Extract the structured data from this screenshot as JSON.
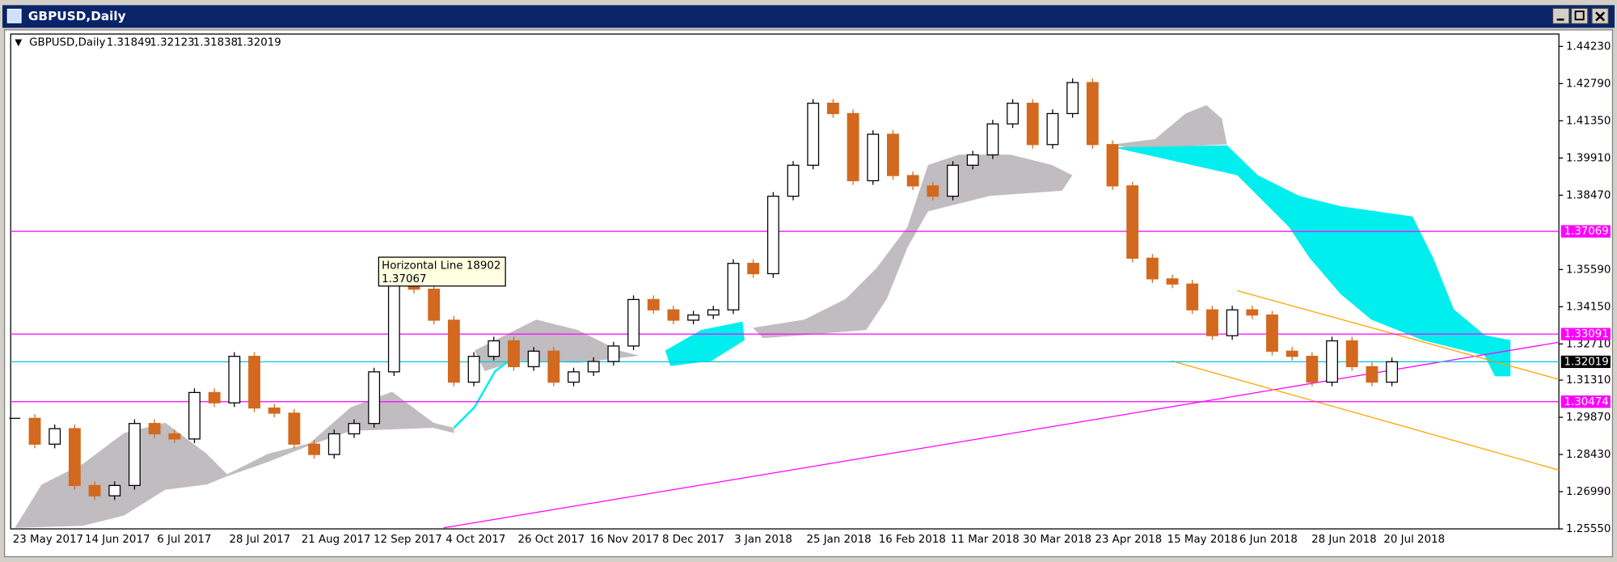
{
  "window": {
    "title": "GBPUSD,Daily"
  },
  "chart_data": {
    "type": "candlestick",
    "title": "GBPUSD,Daily",
    "quote": {
      "open": 1.31849,
      "high": 1.32123,
      "low": 1.31838,
      "close": 1.32019
    },
    "closes": [
      1.2983,
      1.2883,
      1.2943,
      1.2723,
      1.2683,
      1.2723,
      1.2963,
      1.2923,
      1.2903,
      1.3083,
      1.3043,
      1.3223,
      1.3023,
      1.3003,
      1.2883,
      1.2843,
      1.2923,
      1.2963,
      1.3163,
      1.3523,
      1.3483,
      1.3363,
      1.3123,
      1.3223,
      1.3283,
      1.3183,
      1.3243,
      1.3123,
      1.3163,
      1.3203,
      1.3263,
      1.3443,
      1.3403,
      1.3363,
      1.3383,
      1.3403,
      1.3583,
      1.3543,
      1.3843,
      1.3963,
      1.4203,
      1.4163,
      1.3903,
      1.4083,
      1.3923,
      1.3883,
      1.3843,
      1.3963,
      1.4003,
      1.4123,
      1.4203,
      1.4043,
      1.4163,
      1.4283,
      1.4043,
      1.3883,
      1.3603,
      1.3523,
      1.3503,
      1.3403,
      1.3303,
      1.3403,
      1.3383,
      1.3243,
      1.3223,
      1.3123,
      1.3283,
      1.3183,
      1.3123,
      1.3202
    ],
    "up_color": "#000000",
    "down_color": "#d2691e",
    "date_labels": [
      "23 May 2017",
      "14 Jun 2017",
      "6 Jul 2017",
      "28 Jul 2017",
      "21 Aug 2017",
      "12 Sep 2017",
      "4 Oct 2017",
      "26 Oct 2017",
      "16 Nov 2017",
      "8 Dec 2017",
      "3 Jan 2018",
      "25 Jan 2018",
      "16 Feb 2018",
      "11 Mar 2018",
      "30 Mar 2018",
      "23 Apr 2018",
      "15 May 2018",
      "6 Jun 2018",
      "28 Jun 2018",
      "20 Jul 2018"
    ],
    "ylim": [
      1.2555,
      1.4471
    ],
    "yticks": [
      {
        "value": 1.4423,
        "label": "1.44230"
      },
      {
        "value": 1.4279,
        "label": "1.42790"
      },
      {
        "value": 1.4135,
        "label": "1.41350"
      },
      {
        "value": 1.3991,
        "label": "1.39910"
      },
      {
        "value": 1.3847,
        "label": "1.38470"
      },
      {
        "value": 1.3559,
        "label": "1.35590"
      },
      {
        "value": 1.3415,
        "label": "1.34150"
      },
      {
        "value": 1.3271,
        "label": "1.32710"
      },
      {
        "value": 1.3131,
        "label": "1.31310"
      },
      {
        "value": 1.2987,
        "label": "1.29870"
      },
      {
        "value": 1.2843,
        "label": "1.28430"
      },
      {
        "value": 1.2699,
        "label": "1.26990"
      },
      {
        "value": 1.2555,
        "label": "1.25550"
      }
    ],
    "hlines": [
      {
        "value": 1.37069,
        "color": "#ff00ff"
      },
      {
        "value": 1.33091,
        "color": "#ff00ff"
      },
      {
        "value": 1.30474,
        "color": "#ff00ff"
      }
    ],
    "annotation": {
      "title": "Horizontal Line 18902",
      "value": 1.37067
    }
  }
}
